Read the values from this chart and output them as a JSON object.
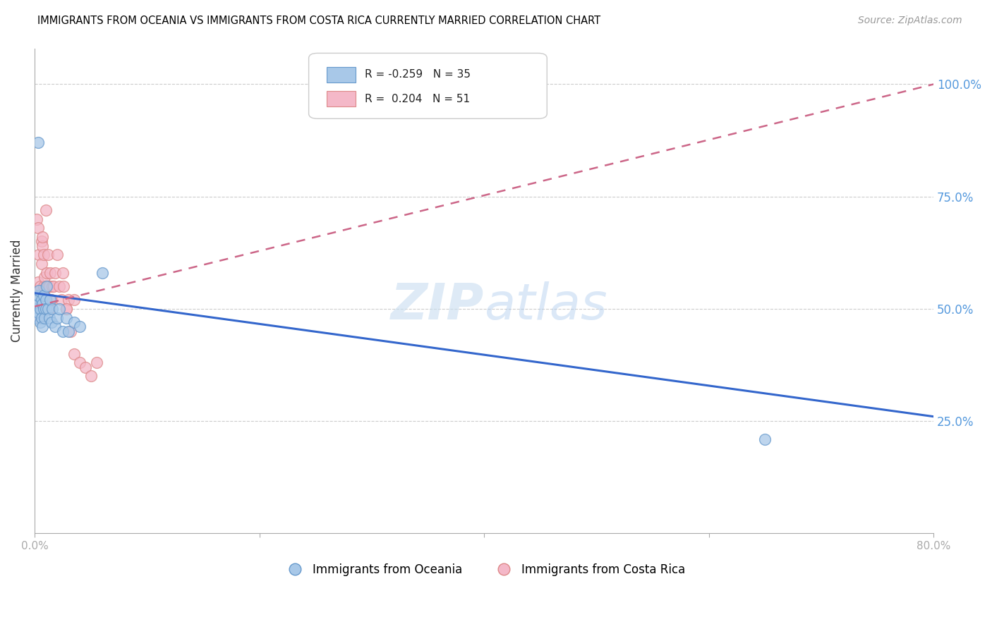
{
  "title": "IMMIGRANTS FROM OCEANIA VS IMMIGRANTS FROM COSTA RICA CURRENTLY MARRIED CORRELATION CHART",
  "source": "Source: ZipAtlas.com",
  "ylabel": "Currently Married",
  "right_yticks": [
    "100.0%",
    "75.0%",
    "50.0%",
    "25.0%"
  ],
  "right_ytick_vals": [
    1.0,
    0.75,
    0.5,
    0.25
  ],
  "xmin": 0.0,
  "xmax": 0.8,
  "ymin": 0.0,
  "ymax": 1.08,
  "watermark_zip": "ZIP",
  "watermark_atlas": "atlas",
  "color_oceania_fill": "#a8c8e8",
  "color_oceania_edge": "#6699cc",
  "color_costa_rica_fill": "#f4b8c8",
  "color_costa_rica_edge": "#dd8888",
  "color_line_oceania": "#3366cc",
  "color_line_costa_rica": "#cc6688",
  "oceania_x": [
    0.001,
    0.002,
    0.002,
    0.003,
    0.003,
    0.004,
    0.004,
    0.005,
    0.005,
    0.006,
    0.006,
    0.007,
    0.007,
    0.008,
    0.008,
    0.009,
    0.01,
    0.01,
    0.011,
    0.012,
    0.013,
    0.014,
    0.015,
    0.016,
    0.018,
    0.02,
    0.022,
    0.025,
    0.028,
    0.03,
    0.035,
    0.04,
    0.06,
    0.65,
    0.003
  ],
  "oceania_y": [
    0.52,
    0.5,
    0.48,
    0.51,
    0.53,
    0.49,
    0.54,
    0.5,
    0.47,
    0.52,
    0.48,
    0.51,
    0.46,
    0.5,
    0.53,
    0.48,
    0.52,
    0.5,
    0.55,
    0.5,
    0.48,
    0.52,
    0.47,
    0.5,
    0.46,
    0.48,
    0.5,
    0.45,
    0.48,
    0.45,
    0.47,
    0.46,
    0.58,
    0.21,
    0.87
  ],
  "costa_rica_x": [
    0.001,
    0.002,
    0.002,
    0.003,
    0.003,
    0.004,
    0.004,
    0.005,
    0.005,
    0.006,
    0.006,
    0.006,
    0.007,
    0.007,
    0.008,
    0.008,
    0.008,
    0.009,
    0.009,
    0.01,
    0.01,
    0.011,
    0.011,
    0.012,
    0.012,
    0.013,
    0.013,
    0.014,
    0.015,
    0.016,
    0.017,
    0.018,
    0.02,
    0.022,
    0.024,
    0.025,
    0.026,
    0.028,
    0.03,
    0.032,
    0.035,
    0.04,
    0.045,
    0.05,
    0.055,
    0.002,
    0.003,
    0.007,
    0.01,
    0.035,
    0.028
  ],
  "costa_rica_y": [
    0.52,
    0.5,
    0.54,
    0.51,
    0.56,
    0.48,
    0.62,
    0.5,
    0.55,
    0.5,
    0.65,
    0.6,
    0.52,
    0.64,
    0.55,
    0.52,
    0.62,
    0.53,
    0.57,
    0.5,
    0.55,
    0.52,
    0.58,
    0.55,
    0.62,
    0.5,
    0.55,
    0.58,
    0.52,
    0.55,
    0.55,
    0.58,
    0.62,
    0.55,
    0.52,
    0.58,
    0.55,
    0.5,
    0.52,
    0.45,
    0.4,
    0.38,
    0.37,
    0.35,
    0.38,
    0.7,
    0.68,
    0.66,
    0.72,
    0.52,
    0.5
  ],
  "line_oceania_x0": 0.0,
  "line_oceania_x1": 0.8,
  "line_oceania_y0": 0.535,
  "line_oceania_y1": 0.26,
  "line_cr_x0": 0.0,
  "line_cr_x1": 0.8,
  "line_cr_y0": 0.505,
  "line_cr_y1": 1.0
}
